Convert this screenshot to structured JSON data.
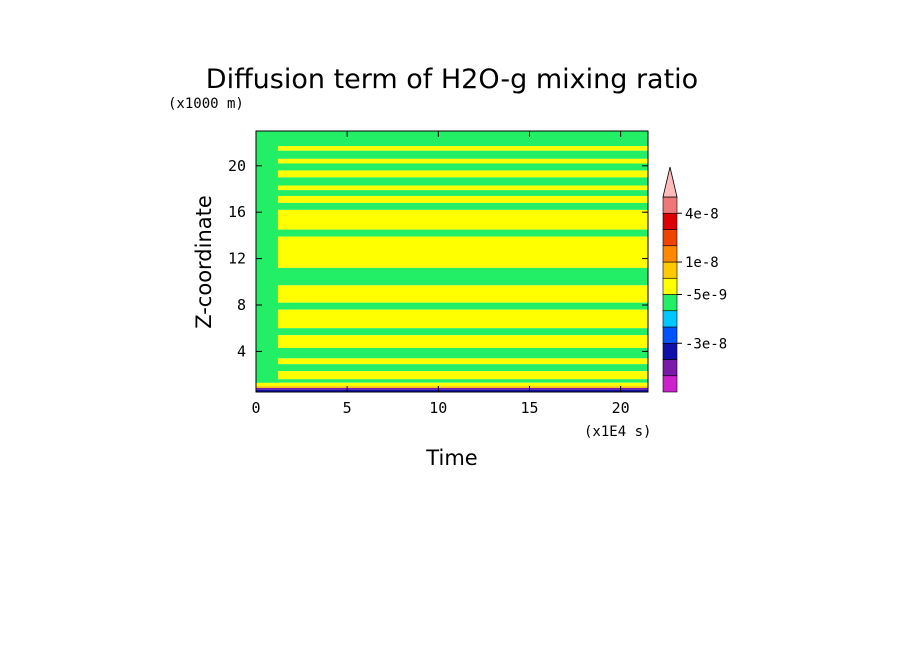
{
  "chart_data": {
    "type": "heatmap",
    "title": "Diffusion term of H2O-g mixing ratio",
    "xlabel": "Time",
    "ylabel": "Z-coordinate",
    "x_unit": "(x1E4 s)",
    "y_unit": "(x1000 m)",
    "xlim": [
      0,
      21.5
    ],
    "ylim": [
      0.5,
      23
    ],
    "x_ticks": [
      0,
      5,
      10,
      15,
      20
    ],
    "y_ticks": [
      4,
      8,
      12,
      16,
      20
    ],
    "x_tick_labels": [
      "0",
      "5",
      "10",
      "15",
      "20"
    ],
    "y_tick_labels": [
      "4",
      "8",
      "12",
      "16",
      "20"
    ],
    "colorbar": {
      "levels": [
        {
          "color": "#cc22cc"
        },
        {
          "color": "#7a1aa8"
        },
        {
          "color": "#1111aa"
        },
        {
          "color": "#0055ff"
        },
        {
          "color": "#00c8ff"
        },
        {
          "color": "#22ee66"
        },
        {
          "color": "#ffff00"
        },
        {
          "color": "#ffc800"
        },
        {
          "color": "#ff8800"
        },
        {
          "color": "#ee4400"
        },
        {
          "color": "#dd0000"
        },
        {
          "color": "#ee7777"
        },
        {
          "color": "#ffbbbb"
        }
      ],
      "labels": [
        "4e-8",
        "1e-8",
        "-5e-9",
        "-3e-8"
      ],
      "label_levels": [
        11,
        8,
        6,
        3
      ]
    },
    "bands": [
      {
        "z0": 21.7,
        "z1": 23.0,
        "value": "green"
      },
      {
        "z0": 21.3,
        "z1": 21.7,
        "value": "yellow"
      },
      {
        "z0": 20.6,
        "z1": 21.3,
        "value": "green"
      },
      {
        "z0": 20.2,
        "z1": 20.6,
        "value": "yellow"
      },
      {
        "z0": 19.6,
        "z1": 20.2,
        "value": "green"
      },
      {
        "z0": 19.0,
        "z1": 19.6,
        "value": "yellow"
      },
      {
        "z0": 18.3,
        "z1": 19.0,
        "value": "green"
      },
      {
        "z0": 17.9,
        "z1": 18.3,
        "value": "yellow"
      },
      {
        "z0": 17.4,
        "z1": 17.9,
        "value": "green"
      },
      {
        "z0": 16.8,
        "z1": 17.4,
        "value": "yellow"
      },
      {
        "z0": 16.2,
        "z1": 16.8,
        "value": "green"
      },
      {
        "z0": 14.5,
        "z1": 16.2,
        "value": "yellow"
      },
      {
        "z0": 13.9,
        "z1": 14.5,
        "value": "green"
      },
      {
        "z0": 11.2,
        "z1": 13.9,
        "value": "yellow"
      },
      {
        "z0": 9.7,
        "z1": 11.2,
        "value": "green"
      },
      {
        "z0": 8.2,
        "z1": 9.7,
        "value": "yellow"
      },
      {
        "z0": 7.6,
        "z1": 8.2,
        "value": "green"
      },
      {
        "z0": 6.0,
        "z1": 7.6,
        "value": "yellow"
      },
      {
        "z0": 5.4,
        "z1": 6.0,
        "value": "green"
      },
      {
        "z0": 4.3,
        "z1": 5.4,
        "value": "yellow"
      },
      {
        "z0": 3.4,
        "z1": 4.3,
        "value": "green"
      },
      {
        "z0": 2.9,
        "z1": 3.4,
        "value": "yellow"
      },
      {
        "z0": 2.3,
        "z1": 2.9,
        "value": "green"
      },
      {
        "z0": 1.6,
        "z1": 2.3,
        "value": "yellow"
      },
      {
        "z0": 1.3,
        "z1": 1.6,
        "value": "green"
      },
      {
        "z0": 1.0,
        "z1": 1.3,
        "value": "yellow"
      },
      {
        "z0": 0.85,
        "z1": 1.0,
        "value": "orange"
      },
      {
        "z0": 0.7,
        "z1": 0.85,
        "value": "purple"
      },
      {
        "z0": 0.5,
        "z1": 0.7,
        "value": "blue"
      }
    ],
    "early_time_column": {
      "t0": 0,
      "t1": 1.2,
      "value": "green"
    },
    "band_colors": {
      "green": "#22ee66",
      "yellow": "#ffff00",
      "orange": "#ffc800",
      "purple": "#7a1aa8",
      "blue": "#1111aa"
    }
  }
}
